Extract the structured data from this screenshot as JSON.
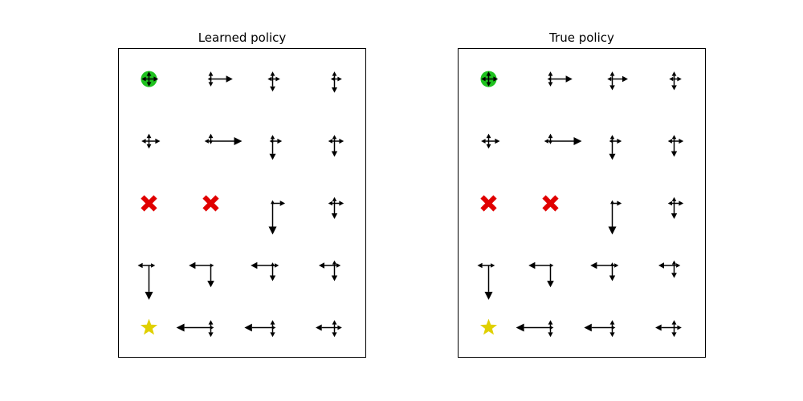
{
  "chart_data": [
    {
      "type": "quiver",
      "title": "Learned policy",
      "grid": false,
      "rows": 5,
      "cols": 4,
      "start": {
        "row": 0,
        "col": 0,
        "color": "#1fc21f"
      },
      "goal": {
        "row": 4,
        "col": 0,
        "color": "#e0d000"
      },
      "hazards": [
        {
          "row": 2,
          "col": 0
        },
        {
          "row": 2,
          "col": 1
        }
      ],
      "hazard_color": "#e00000",
      "arrow_color": "#000000",
      "cells": [
        {
          "row": 0,
          "col": 0,
          "up": 0.12,
          "down": 0.12,
          "left": 0.12,
          "right": 0.15
        },
        {
          "row": 0,
          "col": 1,
          "up": 0.12,
          "down": 0.12,
          "left": 0.05,
          "right": 0.35
        },
        {
          "row": 0,
          "col": 2,
          "up": 0.12,
          "down": 0.2,
          "left": 0.08,
          "right": 0.12
        },
        {
          "row": 0,
          "col": 3,
          "up": 0.12,
          "down": 0.22,
          "left": 0.06,
          "right": 0.12
        },
        {
          "row": 1,
          "col": 0,
          "up": 0.12,
          "down": 0.12,
          "left": 0.12,
          "right": 0.18
        },
        {
          "row": 1,
          "col": 1,
          "up": 0.12,
          "down": 0.05,
          "left": 0.1,
          "right": 0.5
        },
        {
          "row": 1,
          "col": 2,
          "up": 0.1,
          "down": 0.3,
          "left": 0.05,
          "right": 0.15
        },
        {
          "row": 1,
          "col": 3,
          "up": 0.1,
          "down": 0.25,
          "left": 0.1,
          "right": 0.15
        },
        {
          "row": 2,
          "col": 2,
          "up": 0.05,
          "down": 0.5,
          "left": 0.0,
          "right": 0.2
        },
        {
          "row": 2,
          "col": 3,
          "up": 0.1,
          "down": 0.25,
          "left": 0.1,
          "right": 0.15
        },
        {
          "row": 3,
          "col": 0,
          "up": 0.0,
          "down": 0.55,
          "left": 0.18,
          "right": 0.1
        },
        {
          "row": 3,
          "col": 1,
          "up": 0.0,
          "down": 0.35,
          "left": 0.35,
          "right": 0.05
        },
        {
          "row": 3,
          "col": 2,
          "up": 0.05,
          "down": 0.25,
          "left": 0.35,
          "right": 0.1
        },
        {
          "row": 3,
          "col": 3,
          "up": 0.08,
          "down": 0.25,
          "left": 0.25,
          "right": 0.1
        },
        {
          "row": 4,
          "col": 1,
          "up": 0.12,
          "down": 0.15,
          "left": 0.55,
          "right": 0.05
        },
        {
          "row": 4,
          "col": 2,
          "up": 0.12,
          "down": 0.15,
          "left": 0.45,
          "right": 0.05
        },
        {
          "row": 4,
          "col": 3,
          "up": 0.12,
          "down": 0.15,
          "left": 0.3,
          "right": 0.12
        }
      ]
    },
    {
      "type": "quiver",
      "title": "True policy",
      "grid": false,
      "rows": 5,
      "cols": 4,
      "start": {
        "row": 0,
        "col": 0,
        "color": "#1fc21f"
      },
      "goal": {
        "row": 4,
        "col": 0,
        "color": "#e0d000"
      },
      "hazards": [
        {
          "row": 2,
          "col": 0
        },
        {
          "row": 2,
          "col": 1
        }
      ],
      "hazard_color": "#e00000",
      "arrow_color": "#000000",
      "cells": [
        {
          "row": 0,
          "col": 0,
          "up": 0.12,
          "down": 0.12,
          "left": 0.12,
          "right": 0.15
        },
        {
          "row": 0,
          "col": 1,
          "up": 0.12,
          "down": 0.12,
          "left": 0.05,
          "right": 0.35
        },
        {
          "row": 0,
          "col": 2,
          "up": 0.12,
          "down": 0.18,
          "left": 0.08,
          "right": 0.25
        },
        {
          "row": 0,
          "col": 3,
          "up": 0.12,
          "down": 0.18,
          "left": 0.08,
          "right": 0.12
        },
        {
          "row": 1,
          "col": 0,
          "up": 0.12,
          "down": 0.12,
          "left": 0.12,
          "right": 0.18
        },
        {
          "row": 1,
          "col": 1,
          "up": 0.12,
          "down": 0.05,
          "left": 0.1,
          "right": 0.5
        },
        {
          "row": 1,
          "col": 2,
          "up": 0.1,
          "down": 0.3,
          "left": 0.05,
          "right": 0.15
        },
        {
          "row": 1,
          "col": 3,
          "up": 0.1,
          "down": 0.25,
          "left": 0.1,
          "right": 0.15
        },
        {
          "row": 2,
          "col": 2,
          "up": 0.05,
          "down": 0.5,
          "left": 0.0,
          "right": 0.15
        },
        {
          "row": 2,
          "col": 3,
          "up": 0.1,
          "down": 0.25,
          "left": 0.1,
          "right": 0.15
        },
        {
          "row": 3,
          "col": 0,
          "up": 0.0,
          "down": 0.55,
          "left": 0.18,
          "right": 0.1
        },
        {
          "row": 3,
          "col": 1,
          "up": 0.0,
          "down": 0.35,
          "left": 0.35,
          "right": 0.05
        },
        {
          "row": 3,
          "col": 2,
          "up": 0.05,
          "down": 0.25,
          "left": 0.35,
          "right": 0.1
        },
        {
          "row": 3,
          "col": 3,
          "up": 0.08,
          "down": 0.2,
          "left": 0.25,
          "right": 0.1
        },
        {
          "row": 4,
          "col": 1,
          "up": 0.12,
          "down": 0.15,
          "left": 0.55,
          "right": 0.05
        },
        {
          "row": 4,
          "col": 2,
          "up": 0.12,
          "down": 0.15,
          "left": 0.45,
          "right": 0.05
        },
        {
          "row": 4,
          "col": 3,
          "up": 0.12,
          "down": 0.15,
          "left": 0.3,
          "right": 0.12
        }
      ]
    }
  ]
}
